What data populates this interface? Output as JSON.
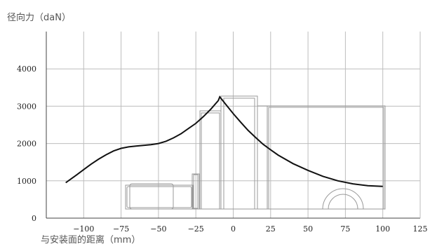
{
  "chart_data": {
    "type": "line",
    "ylabel": "径向力（daN）",
    "xlabel": "与安装面的距离（mm）",
    "xlim": [
      -125,
      125
    ],
    "ylim": [
      0,
      5000
    ],
    "x_ticks": [
      -100,
      -75,
      -50,
      -25,
      0,
      25,
      50,
      75,
      100,
      125
    ],
    "y_ticks": [
      0,
      1000,
      2000,
      3000,
      4000
    ],
    "grid": true,
    "series": [
      {
        "x": [
          -112,
          -105,
          -100,
          -95,
          -90,
          -85,
          -80,
          -75,
          -70,
          -65,
          -60,
          -55,
          -50,
          -45,
          -40,
          -35,
          -30,
          -25,
          -20,
          -15,
          -10,
          -9,
          -5,
          0,
          5,
          10,
          15,
          20,
          25,
          30,
          40,
          50,
          60,
          70,
          80,
          90,
          100
        ],
        "y": [
          950,
          1150,
          1300,
          1450,
          1580,
          1700,
          1800,
          1870,
          1910,
          1930,
          1950,
          1970,
          2000,
          2060,
          2150,
          2260,
          2400,
          2540,
          2720,
          2920,
          3150,
          3250,
          3050,
          2800,
          2570,
          2350,
          2160,
          1980,
          1830,
          1690,
          1460,
          1280,
          1120,
          1000,
          920,
          870,
          850
        ],
        "color": "#111111"
      }
    ]
  }
}
